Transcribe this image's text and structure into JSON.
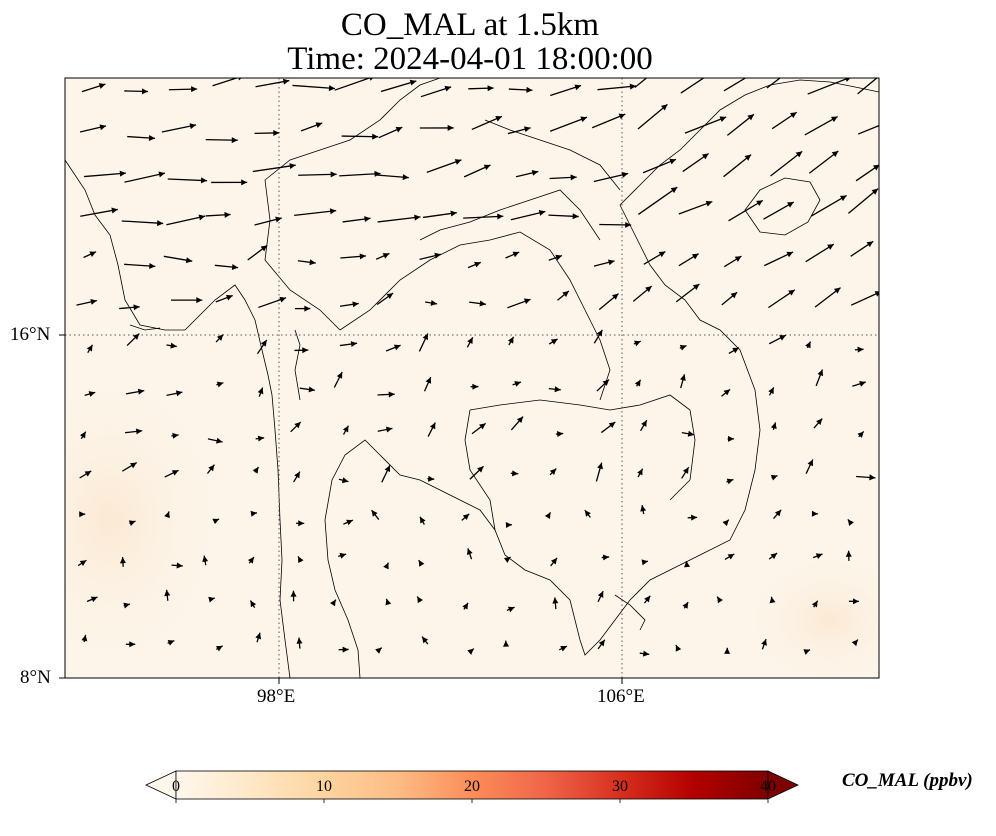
{
  "title_line1": "CO_MAL at 1.5km",
  "title_line2": "Time: 2024-04-01 18:00:00",
  "map": {
    "projection": "PlateCarree",
    "lon_range": [
      93.0,
      112.0
    ],
    "lat_range": [
      8.0,
      22.0
    ],
    "gridlines": {
      "style": "dotted",
      "lons": [
        98,
        106
      ],
      "lats": [
        8,
        16
      ]
    },
    "lon_tick_labels": [
      "98°E",
      "106°E"
    ],
    "lat_tick_labels": [
      "16°N",
      "8°N"
    ],
    "field_color": "#fdf5ea"
  },
  "colorbar": {
    "label": "CO_MAL (ppbv)",
    "ticks": [
      "0",
      "10",
      "20",
      "30",
      "40"
    ],
    "range": [
      0,
      40
    ],
    "extend": "both",
    "colormap": "OrRd",
    "colors": [
      "#fff7ec",
      "#fee8c8",
      "#fdd49e",
      "#fdbb84",
      "#fc8d59",
      "#ef6548",
      "#d7301f",
      "#b30000",
      "#7f0000"
    ]
  },
  "wind_field": {
    "grid_step_deg": 1.0,
    "description_note": "arrows: strong W/SW flow north of 17°N, weak and variable to the south"
  }
}
